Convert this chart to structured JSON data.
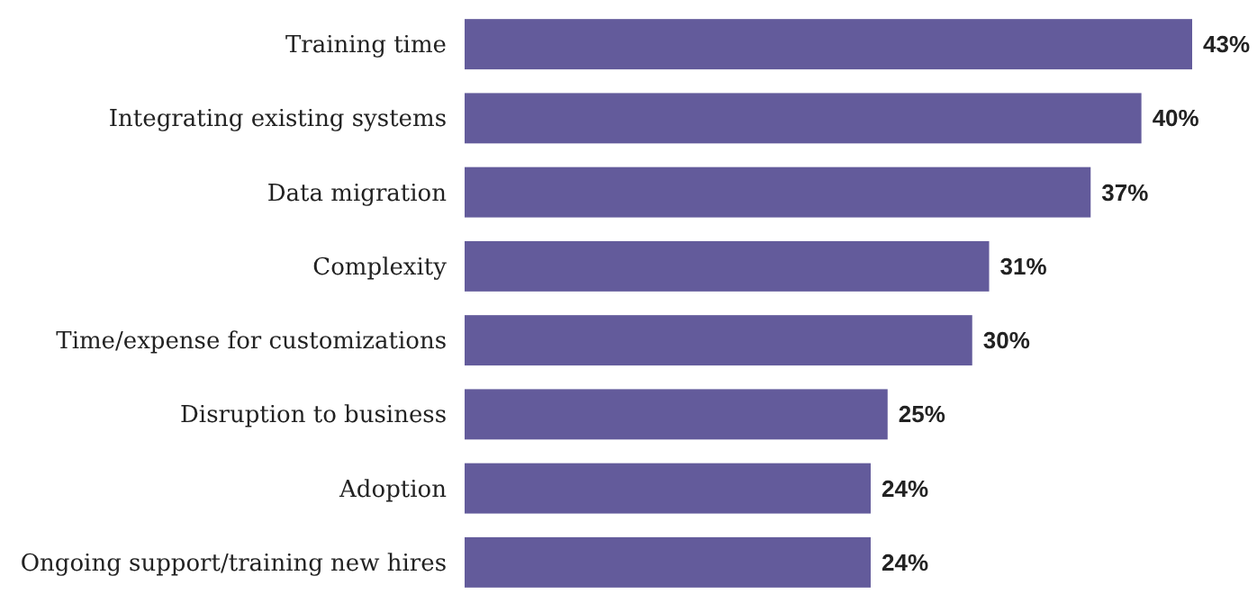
{
  "chart_data": {
    "type": "bar",
    "orientation": "horizontal",
    "categories": [
      "Training time",
      "Integrating existing systems",
      "Data migration",
      "Complexity",
      "Time/expense for customizations",
      "Disruption to business",
      "Adoption",
      "Ongoing support/training new hires"
    ],
    "values": [
      43,
      40,
      37,
      31,
      30,
      25,
      24,
      24
    ],
    "value_labels": [
      "43%",
      "40%",
      "37%",
      "31%",
      "30%",
      "25%",
      "24%",
      "24%"
    ],
    "color": "#635b9b"
  }
}
